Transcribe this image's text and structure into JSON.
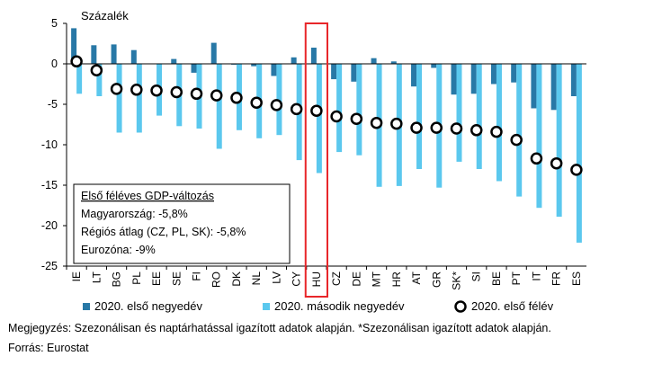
{
  "chart_data": {
    "type": "bar",
    "ylabel": "Százalék",
    "ylim": [
      -25,
      5
    ],
    "yticks": [
      5,
      0,
      -5,
      -10,
      -15,
      -20,
      -25
    ],
    "grid": false,
    "categories": [
      "IE",
      "LT",
      "BG",
      "PL",
      "EE",
      "SE",
      "FI",
      "RO",
      "DK",
      "NL",
      "LV",
      "CY",
      "HU",
      "CZ",
      "DE",
      "MT",
      "HR",
      "AT",
      "GR",
      "SK*",
      "SI",
      "BE",
      "PT",
      "IT",
      "FR",
      "ES"
    ],
    "highlight_category": "HU",
    "series": [
      {
        "name": "2020. első negyedév",
        "kind": "bar",
        "values": [
          4.4,
          2.3,
          2.4,
          1.7,
          0.0,
          0.6,
          -1.1,
          2.6,
          -0.1,
          -0.3,
          -1.5,
          0.8,
          2.0,
          -1.9,
          -2.2,
          0.7,
          0.3,
          -2.8,
          -0.5,
          -3.8,
          -3.7,
          -2.5,
          -2.3,
          -5.5,
          -5.7,
          -4.0
        ]
      },
      {
        "name": "2020. második negyedév",
        "kind": "bar",
        "values": [
          -3.7,
          -4.0,
          -8.5,
          -8.5,
          -6.4,
          -7.7,
          -8.0,
          -10.5,
          -8.2,
          -9.2,
          -8.8,
          -11.9,
          -13.5,
          -10.9,
          -11.3,
          -15.2,
          -15.1,
          -13.0,
          -15.3,
          -12.1,
          -13.0,
          -14.5,
          -16.4,
          -17.8,
          -18.9,
          -22.1
        ]
      },
      {
        "name": "2020. első félév",
        "kind": "marker",
        "values": [
          0.3,
          -0.8,
          -3.1,
          -3.2,
          -3.3,
          -3.5,
          -3.7,
          -3.9,
          -4.2,
          -4.8,
          -5.1,
          -5.6,
          -5.8,
          -6.5,
          -6.8,
          -7.3,
          -7.4,
          -7.9,
          -7.9,
          -8.0,
          -8.2,
          -8.4,
          -9.4,
          -11.7,
          -12.3,
          -13.1
        ]
      }
    ],
    "colors": {
      "q1": "#2878a6",
      "q2": "#5bc8ee",
      "h1_fill": "#ffffff",
      "h1_stroke": "#000000",
      "highlight": "#e8262a",
      "axis": "#000000",
      "text": "#000000"
    },
    "legend_position": "bottom",
    "annotation": {
      "lines": [
        "Első féléves GDP-változás",
        "Magyarország: -5,8%",
        "Régiós átlag (CZ, PL, SK): -5,8%",
        "Eurozóna: -9%"
      ]
    }
  },
  "notes": {
    "line1": "Megjegyzés: Szezonálisan és naptárhatással igazított adatok alapján. *Szezonálisan igazított adatok alapján.",
    "line2": "Forrás: Eurostat"
  }
}
